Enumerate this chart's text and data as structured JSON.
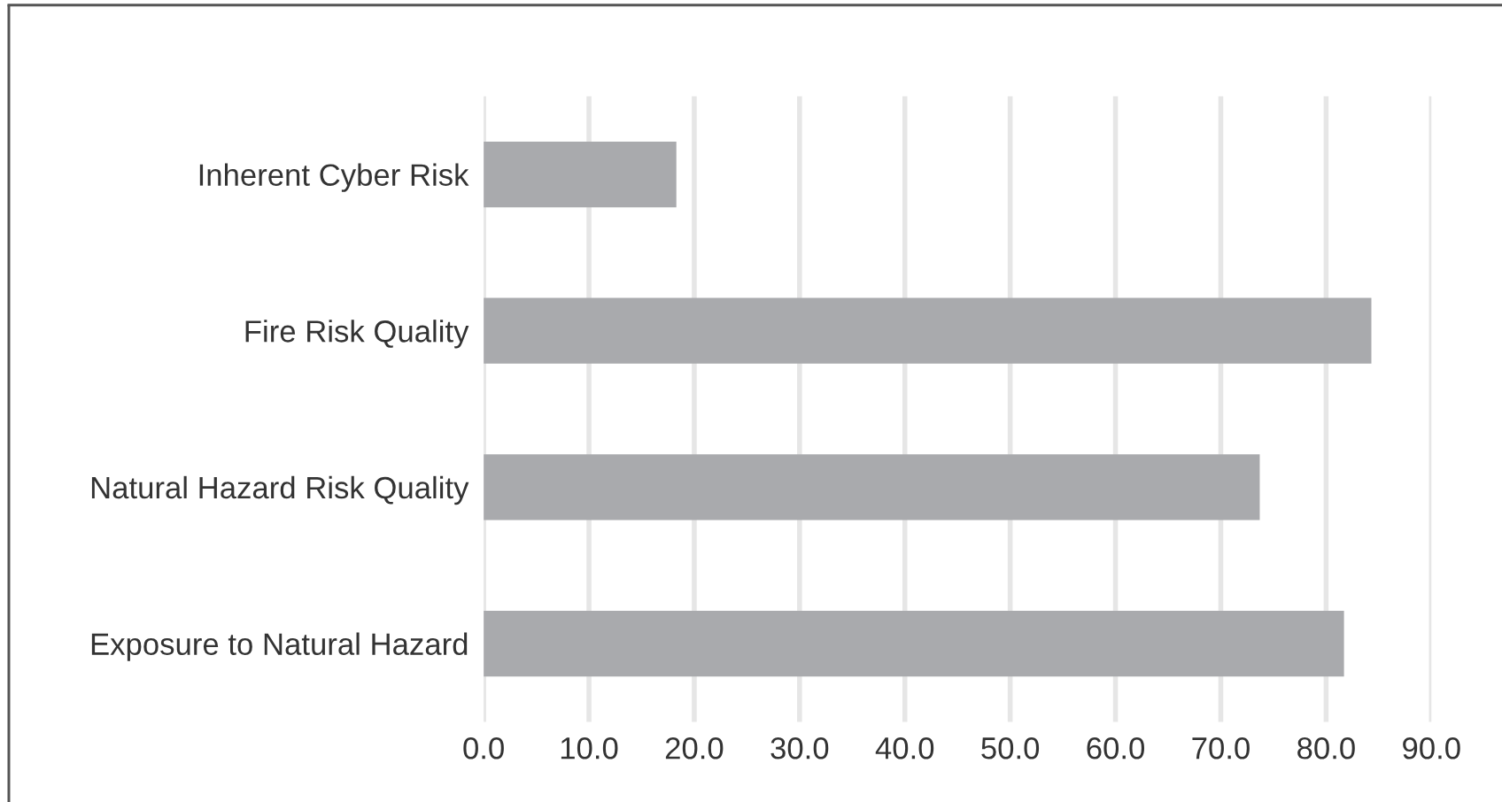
{
  "chart_data": {
    "type": "bar",
    "orientation": "horizontal",
    "categories": [
      "Inherent Cyber Risk",
      "Fire Risk Quality",
      "Natural Hazard Risk Quality",
      "Exposure to Natural Hazard"
    ],
    "values": [
      18.3,
      84.3,
      73.7,
      81.7
    ],
    "color": "#a9aaad",
    "xlim": [
      0,
      90
    ],
    "xticks": [
      {
        "value": 0,
        "label": "0.0"
      },
      {
        "value": 10,
        "label": "10.0"
      },
      {
        "value": 20,
        "label": "20.0"
      },
      {
        "value": 30,
        "label": "30.0"
      },
      {
        "value": 40,
        "label": "40.0"
      },
      {
        "value": 50,
        "label": "50.0"
      },
      {
        "value": 60,
        "label": "60.0"
      },
      {
        "value": 70,
        "label": "70.0"
      },
      {
        "value": 80,
        "label": "80.0"
      },
      {
        "value": 90,
        "label": "90.0"
      }
    ],
    "grid": "x"
  }
}
